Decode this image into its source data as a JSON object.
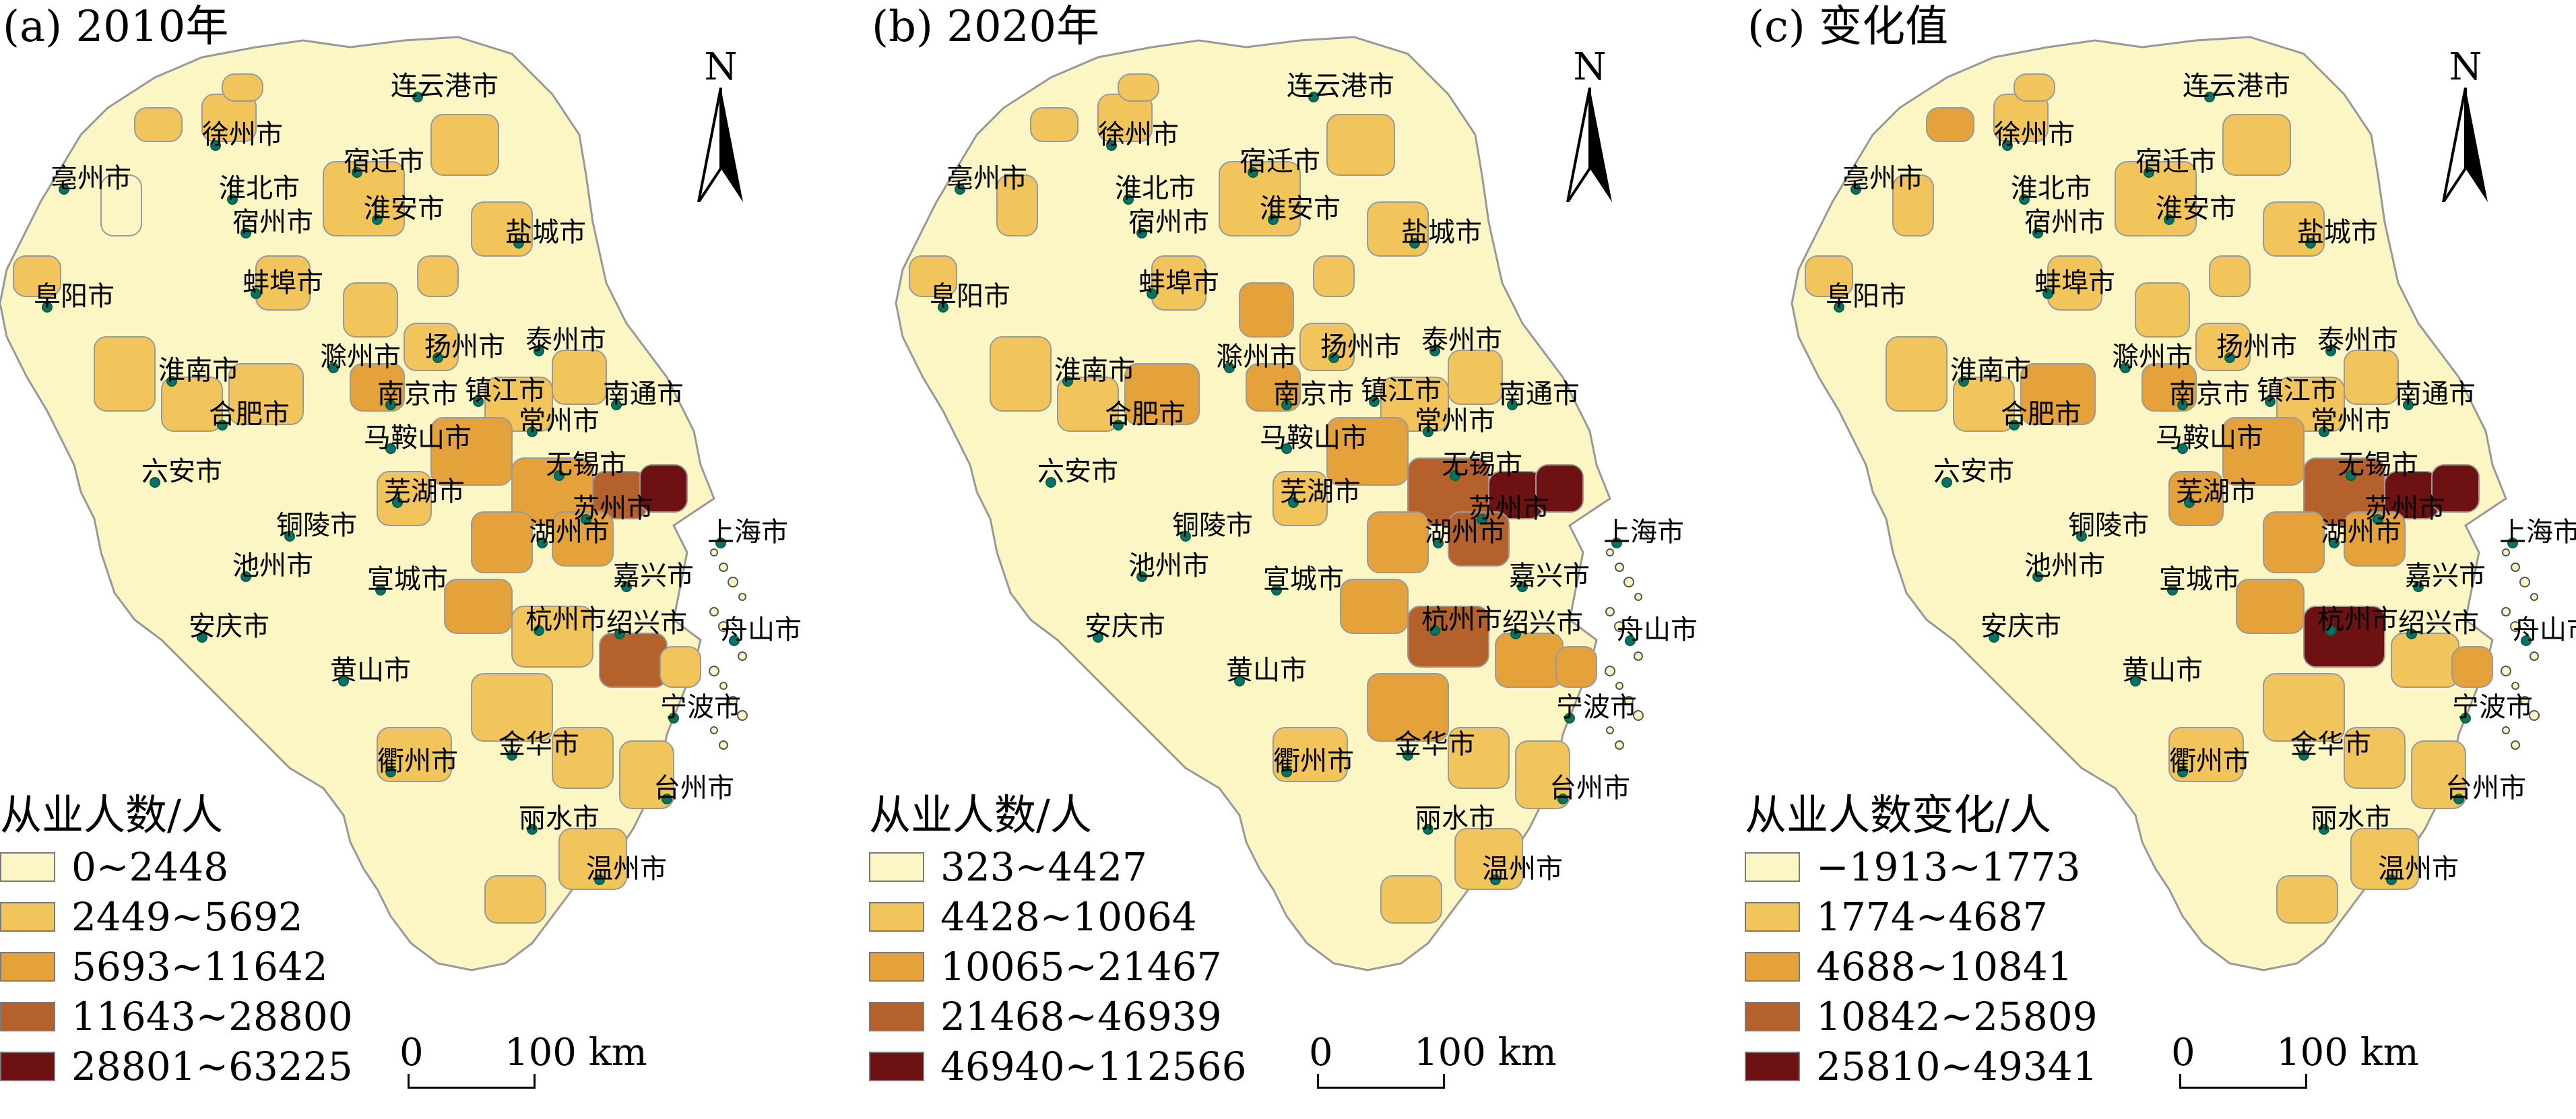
{
  "panels": [
    {
      "title": "(a) 2010年",
      "north_label": "N",
      "legend_title": "从业人数/人",
      "legend": [
        {
          "label": "0~2448",
          "color": "#fbf6c4"
        },
        {
          "label": "2449~5692",
          "color": "#f2c55c"
        },
        {
          "label": "5693~11642",
          "color": "#e5a23a"
        },
        {
          "label": "11643~28800",
          "color": "#b4612c"
        },
        {
          "label": "28801~63225",
          "color": "#6e1112"
        }
      ],
      "scale": {
        "zero": "0",
        "dist": "100 km"
      }
    },
    {
      "title": "(b) 2020年",
      "north_label": "N",
      "legend_title": "从业人数/人",
      "legend": [
        {
          "label": "323~4427",
          "color": "#fbf6c4"
        },
        {
          "label": "4428~10064",
          "color": "#f2c55c"
        },
        {
          "label": "10065~21467",
          "color": "#e5a23a"
        },
        {
          "label": "21468~46939",
          "color": "#b4612c"
        },
        {
          "label": "46940~112566",
          "color": "#6e1112"
        }
      ],
      "scale": {
        "zero": "0",
        "dist": "100 km"
      }
    },
    {
      "title": "(c) 变化值",
      "north_label": "N",
      "legend_title": "从业人数变化/人",
      "legend": [
        {
          "label": "−1913~1773",
          "color": "#fbf6c4"
        },
        {
          "label": "1774~4687",
          "color": "#f2c55c"
        },
        {
          "label": "4688~10841",
          "color": "#e5a23a"
        },
        {
          "label": "10842~25809",
          "color": "#b4612c"
        },
        {
          "label": "25810~49341",
          "color": "#6e1112"
        }
      ],
      "scale": {
        "zero": "0",
        "dist": "100 km"
      }
    }
  ],
  "cities": {
    "lianyungang": "连云港市",
    "xuzhou": "徐州市",
    "bozhou": "亳州市",
    "huaibei": "淮北市",
    "suqian": "宿迁市",
    "suzhou_ah": "宿州市",
    "huaian": "淮安市",
    "yancheng": "盐城市",
    "fuyang": "阜阳市",
    "bengbu": "蚌埠市",
    "huainan": "淮南市",
    "chuzhou": "滁州市",
    "yangzhou": "扬州市",
    "taizhou_js": "泰州市",
    "nanjing": "南京市",
    "zhenjiang": "镇江市",
    "nantong": "南通市",
    "hefei": "合肥市",
    "maanshan": "马鞍山市",
    "changzhou": "常州市",
    "liuan": "六安市",
    "wuhu": "芜湖市",
    "wuxi": "无锡市",
    "suzhou_js": "苏州市",
    "shanghai": "上海市",
    "tongling": "铜陵市",
    "huzhou": "湖州市",
    "chizhou": "池州市",
    "xuancheng": "宣城市",
    "jiaxing": "嘉兴市",
    "anqing": "安庆市",
    "hangzhou": "杭州市",
    "shaoxing": "绍兴市",
    "zhoushan": "舟山市",
    "huangshan": "黄山市",
    "ningbo": "宁波市",
    "jinhua": "金华市",
    "quzhou": "衢州市",
    "taizhou_zj": "台州市",
    "lishui": "丽水市",
    "wenzhou": "温州市"
  }
}
